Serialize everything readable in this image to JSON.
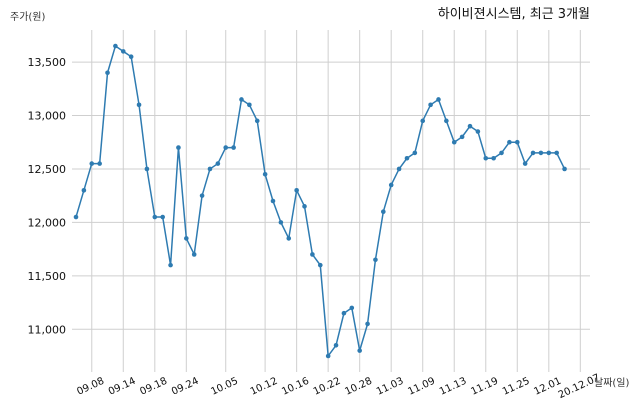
{
  "chart_data": {
    "type": "line",
    "title": "하이비젼시스템, 최근 3개월",
    "ylabel": "주가(원)",
    "xlabel": "날짜(일)",
    "ylim": [
      10600,
      13800
    ],
    "yticks": [
      11000,
      11500,
      12000,
      12500,
      13000,
      13500
    ],
    "ytick_labels": [
      "11,000",
      "11,500",
      "12,000",
      "12,500",
      "13,000",
      "13,500"
    ],
    "xtick_labels": [
      "09.08",
      "09.14",
      "09.18",
      "09.24",
      "10.05",
      "10.12",
      "10.16",
      "10.22",
      "10.28",
      "11.03",
      "11.09",
      "11.13",
      "11.19",
      "11.25",
      "12.01",
      "20.12.07"
    ],
    "xtick_index": [
      2,
      6,
      10,
      14,
      19,
      24,
      28,
      32,
      36,
      40,
      44,
      48,
      52,
      56,
      60,
      64
    ],
    "grid": true,
    "line_color": "#2e7bb1",
    "values": [
      12050,
      12300,
      12550,
      12550,
      13400,
      13650,
      13600,
      13550,
      13100,
      12500,
      12050,
      12050,
      11600,
      12700,
      11850,
      11700,
      12250,
      12500,
      12550,
      12700,
      12700,
      13150,
      13100,
      12950,
      12450,
      12200,
      12000,
      11850,
      12300,
      12150,
      11700,
      11600,
      10750,
      10850,
      11150,
      11200,
      10800,
      11050,
      11650,
      12100,
      12350,
      12500,
      12600,
      12650,
      12950,
      13100,
      13150,
      12950,
      12750,
      12800,
      12900,
      12850,
      12600,
      12600,
      12650,
      12750,
      12750,
      12550,
      12650,
      12650,
      12650,
      12650,
      12500
    ]
  }
}
